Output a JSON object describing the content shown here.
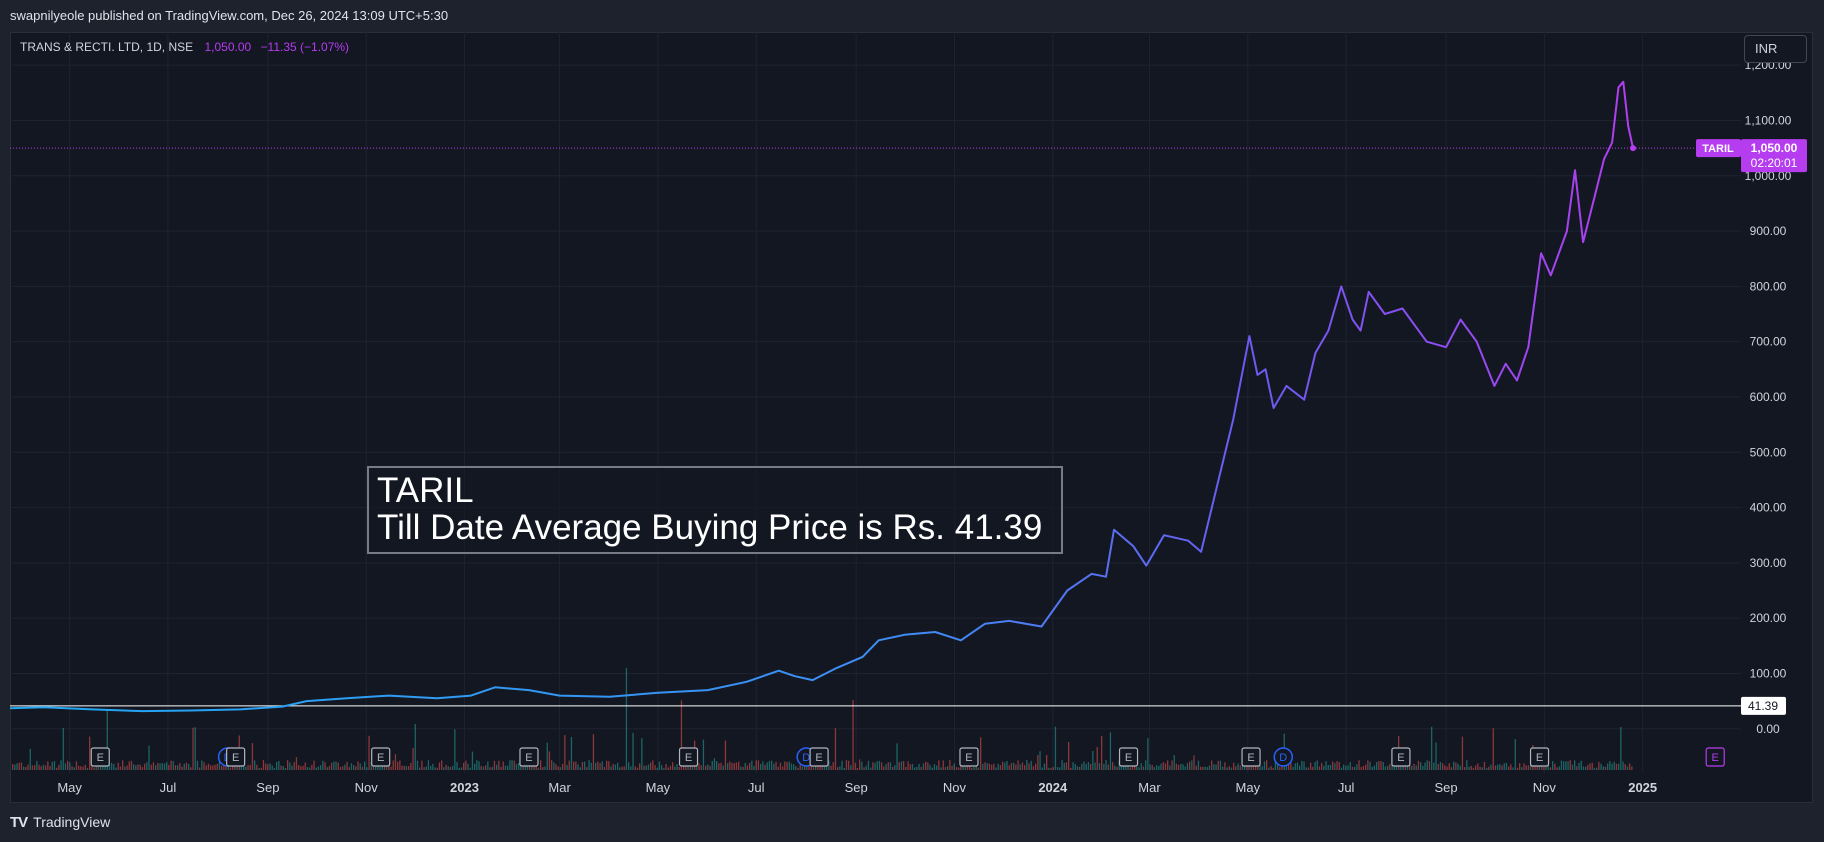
{
  "header": {
    "published_by": "swapnilyeole published on TradingView.com, Dec 26, 2024 13:09 UTC+5:30"
  },
  "legend": {
    "symbol": "TRANS & RECTI. LTD, 1D, NSE",
    "price": "1,050.00",
    "change": "−11.35 (−1.07%)"
  },
  "currency_button": "INR",
  "annotation": {
    "line1": "TARIL",
    "line2": "Till Date Average Buying Price is Rs. 41.39"
  },
  "price_tag": {
    "symbol": "TARIL",
    "price": "1,050.00",
    "countdown": "02:20:01"
  },
  "reference_line_label": "41.39",
  "footer": {
    "brand": "TradingView"
  },
  "colors": {
    "background": "#131722",
    "grid": "#1f2330",
    "line_start": "#21a8f3",
    "line_mid": "#4a7ff0",
    "line_end": "#b63cf0",
    "reference_line": "#ffffff",
    "volume_up": "#26a69a",
    "volume_down": "#ef5350"
  },
  "chart_data": {
    "type": "line",
    "title": "TRANS & RECTI. LTD, 1D, NSE",
    "ylabel": "INR",
    "ylim": [
      -80,
      1260
    ],
    "y_ticks": [
      0,
      100,
      200,
      300,
      400,
      500,
      600,
      700,
      800,
      900,
      1000,
      1100,
      1200
    ],
    "y_tick_labels": [
      "0.00",
      "100.00",
      "200.00",
      "300.00",
      "400.00",
      "500.00",
      "600.00",
      "700.00",
      "800.00",
      "900.00",
      "1,000.00",
      "1,100.00",
      "1,200.00"
    ],
    "x_tick_labels": [
      {
        "label": "May",
        "date": "2022-05-01",
        "bold": false
      },
      {
        "label": "Jul",
        "date": "2022-07-01",
        "bold": false
      },
      {
        "label": "Sep",
        "date": "2022-09-01",
        "bold": false
      },
      {
        "label": "Nov",
        "date": "2022-11-01",
        "bold": false
      },
      {
        "label": "2023",
        "date": "2023-01-01",
        "bold": true
      },
      {
        "label": "Mar",
        "date": "2023-03-01",
        "bold": false
      },
      {
        "label": "May",
        "date": "2023-05-01",
        "bold": false
      },
      {
        "label": "Jul",
        "date": "2023-07-01",
        "bold": false
      },
      {
        "label": "Sep",
        "date": "2023-09-01",
        "bold": false
      },
      {
        "label": "Nov",
        "date": "2023-11-01",
        "bold": false
      },
      {
        "label": "2024",
        "date": "2024-01-01",
        "bold": true
      },
      {
        "label": "Mar",
        "date": "2024-03-01",
        "bold": false
      },
      {
        "label": "May",
        "date": "2024-05-01",
        "bold": false
      },
      {
        "label": "Jul",
        "date": "2024-07-01",
        "bold": false
      },
      {
        "label": "Sep",
        "date": "2024-09-01",
        "bold": false
      },
      {
        "label": "Nov",
        "date": "2024-11-01",
        "bold": false
      },
      {
        "label": "2025",
        "date": "2025-01-01",
        "bold": true
      }
    ],
    "x_range": [
      "2022-03-25",
      "2025-03-03"
    ],
    "series": [
      {
        "values": [
          {
            "x": "2022-03-25",
            "y": 37
          },
          {
            "x": "2022-04-15",
            "y": 39
          },
          {
            "x": "2022-05-15",
            "y": 35
          },
          {
            "x": "2022-06-15",
            "y": 32
          },
          {
            "x": "2022-07-15",
            "y": 33
          },
          {
            "x": "2022-08-15",
            "y": 35
          },
          {
            "x": "2022-09-10",
            "y": 40
          },
          {
            "x": "2022-09-25",
            "y": 50
          },
          {
            "x": "2022-10-20",
            "y": 55
          },
          {
            "x": "2022-11-15",
            "y": 60
          },
          {
            "x": "2022-12-15",
            "y": 55
          },
          {
            "x": "2023-01-05",
            "y": 60
          },
          {
            "x": "2023-01-20",
            "y": 75
          },
          {
            "x": "2023-02-10",
            "y": 70
          },
          {
            "x": "2023-03-01",
            "y": 60
          },
          {
            "x": "2023-04-01",
            "y": 58
          },
          {
            "x": "2023-05-01",
            "y": 65
          },
          {
            "x": "2023-06-01",
            "y": 70
          },
          {
            "x": "2023-06-25",
            "y": 85
          },
          {
            "x": "2023-07-15",
            "y": 105
          },
          {
            "x": "2023-07-25",
            "y": 95
          },
          {
            "x": "2023-08-05",
            "y": 88
          },
          {
            "x": "2023-08-20",
            "y": 110
          },
          {
            "x": "2023-09-05",
            "y": 130
          },
          {
            "x": "2023-09-15",
            "y": 160
          },
          {
            "x": "2023-10-01",
            "y": 170
          },
          {
            "x": "2023-10-20",
            "y": 175
          },
          {
            "x": "2023-11-05",
            "y": 160
          },
          {
            "x": "2023-11-20",
            "y": 190
          },
          {
            "x": "2023-12-05",
            "y": 195
          },
          {
            "x": "2023-12-25",
            "y": 185
          },
          {
            "x": "2024-01-10",
            "y": 250
          },
          {
            "x": "2024-01-25",
            "y": 280
          },
          {
            "x": "2024-02-03",
            "y": 275
          },
          {
            "x": "2024-02-08",
            "y": 360
          },
          {
            "x": "2024-02-20",
            "y": 330
          },
          {
            "x": "2024-02-28",
            "y": 295
          },
          {
            "x": "2024-03-10",
            "y": 350
          },
          {
            "x": "2024-03-25",
            "y": 340
          },
          {
            "x": "2024-04-02",
            "y": 320
          },
          {
            "x": "2024-04-12",
            "y": 440
          },
          {
            "x": "2024-04-22",
            "y": 560
          },
          {
            "x": "2024-05-02",
            "y": 710
          },
          {
            "x": "2024-05-07",
            "y": 640
          },
          {
            "x": "2024-05-12",
            "y": 650
          },
          {
            "x": "2024-05-17",
            "y": 580
          },
          {
            "x": "2024-05-25",
            "y": 620
          },
          {
            "x": "2024-06-05",
            "y": 595
          },
          {
            "x": "2024-06-12",
            "y": 680
          },
          {
            "x": "2024-06-20",
            "y": 720
          },
          {
            "x": "2024-06-28",
            "y": 800
          },
          {
            "x": "2024-07-05",
            "y": 740
          },
          {
            "x": "2024-07-10",
            "y": 720
          },
          {
            "x": "2024-07-15",
            "y": 790
          },
          {
            "x": "2024-07-25",
            "y": 750
          },
          {
            "x": "2024-08-05",
            "y": 760
          },
          {
            "x": "2024-08-20",
            "y": 700
          },
          {
            "x": "2024-09-01",
            "y": 690
          },
          {
            "x": "2024-09-10",
            "y": 740
          },
          {
            "x": "2024-09-20",
            "y": 700
          },
          {
            "x": "2024-10-01",
            "y": 620
          },
          {
            "x": "2024-10-08",
            "y": 660
          },
          {
            "x": "2024-10-15",
            "y": 630
          },
          {
            "x": "2024-10-22",
            "y": 690
          },
          {
            "x": "2024-10-30",
            "y": 860
          },
          {
            "x": "2024-11-05",
            "y": 820
          },
          {
            "x": "2024-11-15",
            "y": 900
          },
          {
            "x": "2024-11-20",
            "y": 1010
          },
          {
            "x": "2024-11-25",
            "y": 880
          },
          {
            "x": "2024-12-02",
            "y": 960
          },
          {
            "x": "2024-12-08",
            "y": 1030
          },
          {
            "x": "2024-12-13",
            "y": 1060
          },
          {
            "x": "2024-12-17",
            "y": 1160
          },
          {
            "x": "2024-12-20",
            "y": 1170
          },
          {
            "x": "2024-12-23",
            "y": 1090
          },
          {
            "x": "2024-12-26",
            "y": 1050
          }
        ]
      }
    ],
    "reference_line": {
      "y": 41.39,
      "label": "41.39"
    },
    "current_price": {
      "y": 1050,
      "label": "1,050.00"
    },
    "event_markers": [
      {
        "type": "E",
        "date": "2022-05-20"
      },
      {
        "type": "D",
        "date": "2022-08-07"
      },
      {
        "type": "E",
        "date": "2022-08-12"
      },
      {
        "type": "E",
        "date": "2022-11-10"
      },
      {
        "type": "E",
        "date": "2023-02-10"
      },
      {
        "type": "E",
        "date": "2023-05-20"
      },
      {
        "type": "D",
        "date": "2023-08-01"
      },
      {
        "type": "E",
        "date": "2023-08-09"
      },
      {
        "type": "E",
        "date": "2023-11-10"
      },
      {
        "type": "E",
        "date": "2024-02-17"
      },
      {
        "type": "E",
        "date": "2024-05-03"
      },
      {
        "type": "D",
        "date": "2024-05-23"
      },
      {
        "type": "E",
        "date": "2024-08-04"
      },
      {
        "type": "E",
        "date": "2024-10-29"
      },
      {
        "type": "E",
        "date": "2025-02-15"
      }
    ]
  }
}
